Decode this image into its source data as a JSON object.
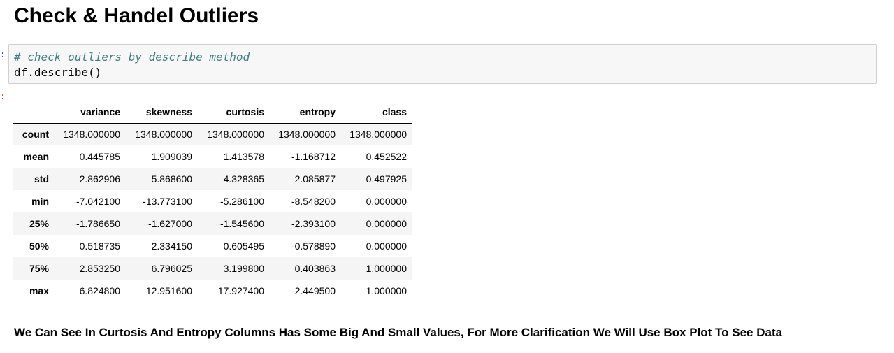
{
  "heading": "Check & Handel Outliers",
  "prompts": {
    "in": ":",
    "out": ":"
  },
  "code_cell": {
    "comment": "# check outliers by describe method",
    "code": "df.describe()"
  },
  "table": {
    "columns": [
      "variance",
      "skewness",
      "curtosis",
      "entropy",
      "class"
    ],
    "rows": [
      {
        "index": "count",
        "values": [
          "1348.000000",
          "1348.000000",
          "1348.000000",
          "1348.000000",
          "1348.000000"
        ]
      },
      {
        "index": "mean",
        "values": [
          "0.445785",
          "1.909039",
          "1.413578",
          "-1.168712",
          "0.452522"
        ]
      },
      {
        "index": "std",
        "values": [
          "2.862906",
          "5.868600",
          "4.328365",
          "2.085877",
          "0.497925"
        ]
      },
      {
        "index": "min",
        "values": [
          "-7.042100",
          "-13.773100",
          "-5.286100",
          "-8.548200",
          "0.000000"
        ]
      },
      {
        "index": "25%",
        "values": [
          "-1.786650",
          "-1.627000",
          "-1.545600",
          "-2.393100",
          "0.000000"
        ]
      },
      {
        "index": "50%",
        "values": [
          "0.518735",
          "2.334150",
          "0.605495",
          "-0.578890",
          "0.000000"
        ]
      },
      {
        "index": "75%",
        "values": [
          "2.853250",
          "6.796025",
          "3.199800",
          "0.403863",
          "1.000000"
        ]
      },
      {
        "index": "max",
        "values": [
          "6.824800",
          "12.951600",
          "17.927400",
          "2.449500",
          "1.000000"
        ]
      }
    ]
  },
  "conclusion": "We Can See In Curtosis And Entropy Columns Has Some Big And Small Values, For More Clarification We Will Use Box Plot To See Data"
}
